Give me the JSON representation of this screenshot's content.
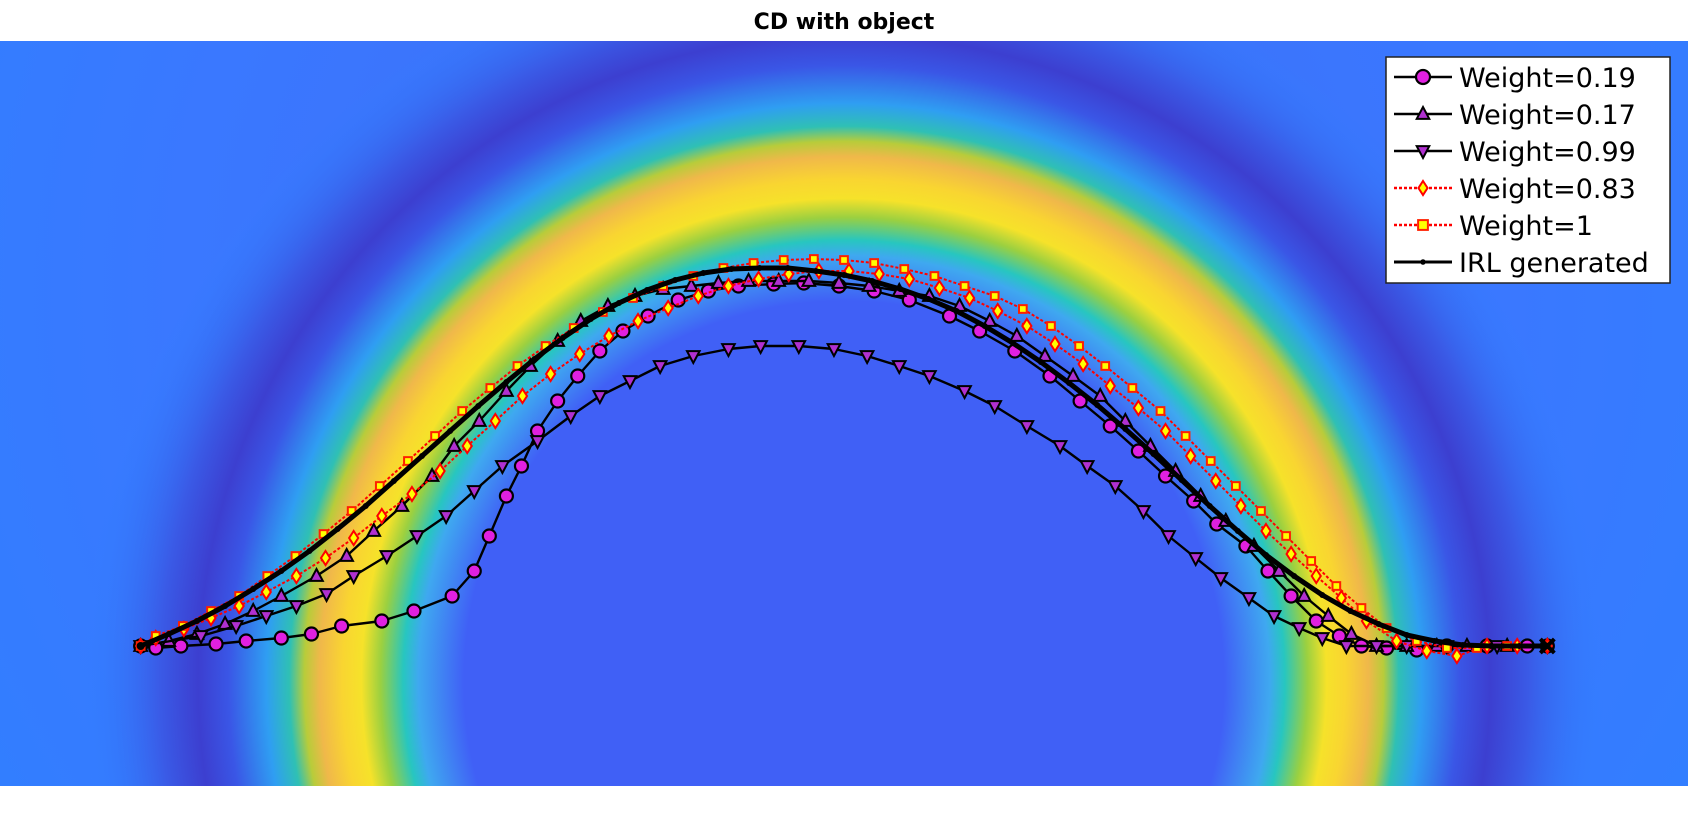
{
  "chart_data": {
    "type": "line",
    "title": "CD with object",
    "xlabel": "",
    "ylabel": "",
    "xlim": [
      0,
      1.68
    ],
    "ylim": [
      0,
      0.745
    ],
    "grid": false,
    "legend_position": "top-right",
    "background": {
      "type": "heatmap",
      "description_colormap": "parula",
      "ring_center": [
        0.84,
        0.105
      ],
      "ring_radius": 0.41
    },
    "start_point": [
      0.14,
      0.14
    ],
    "end_point": [
      1.54,
      0.14
    ],
    "series": [
      {
        "name": "Weight=0.19",
        "line": "solid",
        "line_color": "#000000",
        "marker": "circle",
        "marker_face": "#e020e0",
        "marker_edge": "#000000",
        "x": [
          0.14,
          0.155,
          0.18,
          0.215,
          0.245,
          0.28,
          0.31,
          0.34,
          0.38,
          0.412,
          0.45,
          0.472,
          0.487,
          0.504,
          0.519,
          0.535,
          0.555,
          0.575,
          0.597,
          0.62,
          0.645,
          0.675,
          0.705,
          0.735,
          0.77,
          0.8,
          0.835,
          0.87,
          0.905,
          0.945,
          0.975,
          1.01,
          1.045,
          1.075,
          1.105,
          1.133,
          1.16,
          1.188,
          1.211,
          1.24,
          1.262,
          1.285,
          1.31,
          1.333,
          1.355,
          1.38,
          1.41,
          1.44,
          1.48,
          1.52,
          1.54
        ],
        "y": [
          0.14,
          0.138,
          0.14,
          0.142,
          0.145,
          0.148,
          0.152,
          0.16,
          0.165,
          0.175,
          0.19,
          0.215,
          0.25,
          0.29,
          0.32,
          0.355,
          0.385,
          0.41,
          0.435,
          0.455,
          0.47,
          0.486,
          0.495,
          0.5,
          0.502,
          0.503,
          0.5,
          0.495,
          0.486,
          0.47,
          0.455,
          0.435,
          0.41,
          0.385,
          0.36,
          0.335,
          0.31,
          0.285,
          0.262,
          0.24,
          0.215,
          0.19,
          0.165,
          0.15,
          0.14,
          0.138,
          0.136,
          0.14,
          0.14,
          0.14,
          0.14
        ]
      },
      {
        "name": "Weight=0.17",
        "line": "solid",
        "line_color": "#000000",
        "marker": "triangle-up",
        "marker_face": "#b030d0",
        "marker_edge": "#000000",
        "x": [
          0.14,
          0.168,
          0.196,
          0.224,
          0.252,
          0.28,
          0.315,
          0.345,
          0.372,
          0.4,
          0.43,
          0.452,
          0.477,
          0.504,
          0.528,
          0.555,
          0.578,
          0.605,
          0.632,
          0.66,
          0.688,
          0.715,
          0.745,
          0.775,
          0.805,
          0.835,
          0.865,
          0.895,
          0.925,
          0.955,
          0.985,
          1.012,
          1.04,
          1.068,
          1.095,
          1.12,
          1.145,
          1.17,
          1.195,
          1.22,
          1.248,
          1.273,
          1.298,
          1.322,
          1.345,
          1.37,
          1.4,
          1.43,
          1.46,
          1.5,
          1.54
        ],
        "y": [
          0.14,
          0.145,
          0.152,
          0.162,
          0.175,
          0.19,
          0.21,
          0.23,
          0.255,
          0.28,
          0.31,
          0.34,
          0.365,
          0.395,
          0.42,
          0.445,
          0.465,
          0.48,
          0.49,
          0.497,
          0.5,
          0.503,
          0.505,
          0.505,
          0.505,
          0.503,
          0.5,
          0.495,
          0.49,
          0.48,
          0.465,
          0.45,
          0.43,
          0.41,
          0.39,
          0.365,
          0.34,
          0.315,
          0.29,
          0.265,
          0.24,
          0.215,
          0.19,
          0.17,
          0.152,
          0.14,
          0.14,
          0.14,
          0.14,
          0.14,
          0.14
        ]
      },
      {
        "name": "Weight=0.99",
        "line": "solid",
        "line_color": "#000000",
        "marker": "triangle-down",
        "marker_face": "#b030d0",
        "marker_edge": "#000000",
        "x": [
          0.14,
          0.2,
          0.235,
          0.265,
          0.295,
          0.325,
          0.352,
          0.385,
          0.415,
          0.444,
          0.472,
          0.5,
          0.535,
          0.568,
          0.597,
          0.627,
          0.657,
          0.69,
          0.725,
          0.757,
          0.795,
          0.83,
          0.863,
          0.895,
          0.925,
          0.96,
          0.99,
          1.022,
          1.055,
          1.082,
          1.11,
          1.138,
          1.163,
          1.19,
          1.215,
          1.243,
          1.268,
          1.293,
          1.316,
          1.34,
          1.37,
          1.4,
          1.44,
          1.49,
          1.54
        ],
        "y": [
          0.14,
          0.15,
          0.16,
          0.17,
          0.18,
          0.192,
          0.21,
          0.23,
          0.25,
          0.27,
          0.295,
          0.32,
          0.345,
          0.37,
          0.39,
          0.405,
          0.42,
          0.43,
          0.437,
          0.44,
          0.44,
          0.437,
          0.43,
          0.42,
          0.41,
          0.395,
          0.38,
          0.36,
          0.34,
          0.32,
          0.3,
          0.275,
          0.25,
          0.228,
          0.208,
          0.188,
          0.17,
          0.158,
          0.148,
          0.14,
          0.14,
          0.14,
          0.14,
          0.14,
          0.14
        ]
      },
      {
        "name": "Weight=0.83",
        "line": "dotted",
        "line_color": "#ff0000",
        "marker": "diamond",
        "marker_face": "#ffff00",
        "marker_edge": "#ff0000",
        "x": [
          0.14,
          0.155,
          0.183,
          0.21,
          0.238,
          0.265,
          0.295,
          0.324,
          0.352,
          0.38,
          0.41,
          0.438,
          0.465,
          0.493,
          0.52,
          0.548,
          0.577,
          0.606,
          0.635,
          0.665,
          0.695,
          0.725,
          0.755,
          0.785,
          0.815,
          0.845,
          0.875,
          0.905,
          0.935,
          0.965,
          0.993,
          1.022,
          1.05,
          1.078,
          1.105,
          1.133,
          1.16,
          1.185,
          1.21,
          1.235,
          1.26,
          1.285,
          1.31,
          1.335,
          1.36,
          1.39,
          1.42,
          1.45,
          1.48,
          1.51,
          1.54
        ],
        "y": [
          0.14,
          0.148,
          0.157,
          0.168,
          0.18,
          0.194,
          0.21,
          0.228,
          0.248,
          0.27,
          0.292,
          0.315,
          0.34,
          0.365,
          0.39,
          0.412,
          0.432,
          0.45,
          0.465,
          0.478,
          0.49,
          0.5,
          0.507,
          0.512,
          0.515,
          0.515,
          0.512,
          0.507,
          0.498,
          0.488,
          0.475,
          0.46,
          0.442,
          0.422,
          0.4,
          0.378,
          0.355,
          0.33,
          0.305,
          0.28,
          0.255,
          0.232,
          0.21,
          0.188,
          0.165,
          0.145,
          0.135,
          0.13,
          0.14,
          0.14,
          0.14
        ]
      },
      {
        "name": "Weight=1",
        "line": "dotted",
        "line_color": "#ff0000",
        "marker": "square",
        "marker_face": "#ffff00",
        "marker_edge": "#ff2000",
        "x": [
          0.14,
          0.155,
          0.182,
          0.21,
          0.238,
          0.266,
          0.294,
          0.322,
          0.35,
          0.378,
          0.406,
          0.433,
          0.46,
          0.488,
          0.515,
          0.543,
          0.571,
          0.6,
          0.63,
          0.66,
          0.69,
          0.72,
          0.75,
          0.78,
          0.81,
          0.84,
          0.87,
          0.9,
          0.93,
          0.96,
          0.99,
          1.018,
          1.046,
          1.074,
          1.1,
          1.127,
          1.155,
          1.18,
          1.205,
          1.23,
          1.255,
          1.28,
          1.305,
          1.33,
          1.355,
          1.38,
          1.41,
          1.44,
          1.47,
          1.5,
          1.54
        ],
        "y": [
          0.14,
          0.15,
          0.16,
          0.175,
          0.19,
          0.21,
          0.23,
          0.252,
          0.275,
          0.3,
          0.325,
          0.35,
          0.375,
          0.398,
          0.42,
          0.44,
          0.458,
          0.474,
          0.488,
          0.5,
          0.51,
          0.518,
          0.523,
          0.526,
          0.527,
          0.526,
          0.523,
          0.517,
          0.51,
          0.5,
          0.49,
          0.477,
          0.46,
          0.44,
          0.42,
          0.398,
          0.375,
          0.35,
          0.325,
          0.3,
          0.275,
          0.25,
          0.225,
          0.2,
          0.178,
          0.158,
          0.145,
          0.138,
          0.138,
          0.14,
          0.14
        ]
      },
      {
        "name": "IRL generated",
        "line": "solid-thick",
        "line_color": "#000000",
        "marker": "dot",
        "marker_face": "#000000",
        "marker_edge": "#000000",
        "x": [
          0.14,
          0.168,
          0.196,
          0.224,
          0.252,
          0.28,
          0.308,
          0.336,
          0.364,
          0.392,
          0.42,
          0.448,
          0.476,
          0.504,
          0.532,
          0.56,
          0.588,
          0.616,
          0.644,
          0.672,
          0.7,
          0.728,
          0.756,
          0.784,
          0.812,
          0.84,
          0.868,
          0.896,
          0.924,
          0.952,
          0.98,
          1.008,
          1.036,
          1.064,
          1.092,
          1.12,
          1.148,
          1.176,
          1.204,
          1.232,
          1.26,
          1.288,
          1.316,
          1.344,
          1.372,
          1.4,
          1.428,
          1.456,
          1.484,
          1.512,
          1.54
        ],
        "y": [
          0.14,
          0.152,
          0.165,
          0.18,
          0.197,
          0.215,
          0.235,
          0.257,
          0.28,
          0.305,
          0.33,
          0.355,
          0.38,
          0.404,
          0.427,
          0.448,
          0.467,
          0.483,
          0.496,
          0.506,
          0.513,
          0.517,
          0.518,
          0.518,
          0.515,
          0.511,
          0.505,
          0.497,
          0.487,
          0.475,
          0.46,
          0.443,
          0.424,
          0.403,
          0.381,
          0.357,
          0.332,
          0.306,
          0.28,
          0.255,
          0.231,
          0.21,
          0.191,
          0.175,
          0.162,
          0.151,
          0.145,
          0.141,
          0.14,
          0.14,
          0.14
        ]
      }
    ]
  }
}
